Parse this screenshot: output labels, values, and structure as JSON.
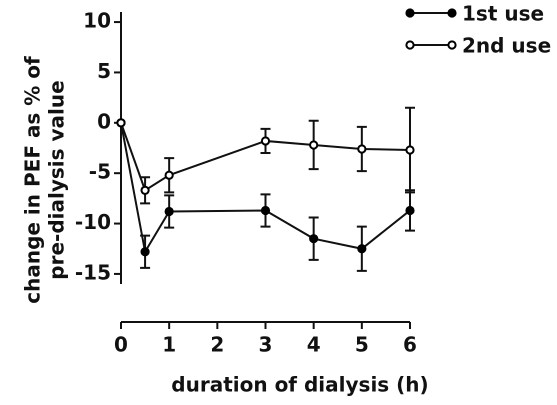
{
  "chart_data": {
    "type": "line",
    "xlabel": "duration of dialysis (h)",
    "ylabel": [
      "change in PEF as % of",
      "pre-dialysis value"
    ],
    "x": [
      0,
      0.5,
      1,
      3,
      4,
      5,
      6
    ],
    "series": [
      {
        "name": "1st use",
        "color": "#000000",
        "marker": "filled",
        "values": [
          0,
          -12.8,
          -8.8,
          -8.7,
          -11.5,
          -12.5,
          -8.7
        ],
        "errors": [
          null,
          1.6,
          1.6,
          1.6,
          2.1,
          2.2,
          2.0
        ]
      },
      {
        "name": "2nd use",
        "color": "#000000",
        "marker": "open",
        "values": [
          0,
          -6.7,
          -5.2,
          -1.8,
          -2.2,
          -2.6,
          -2.7
        ],
        "errors": [
          null,
          1.3,
          1.7,
          1.2,
          2.4,
          2.2,
          4.2
        ]
      }
    ],
    "xlim": [
      0,
      6
    ],
    "xticks": [
      0,
      1,
      2,
      3,
      4,
      5,
      6
    ],
    "ylim": [
      -16,
      11
    ],
    "yticks": [
      10,
      5,
      0,
      -5,
      -10,
      -15
    ],
    "legend": "top-right",
    "grid": false
  }
}
